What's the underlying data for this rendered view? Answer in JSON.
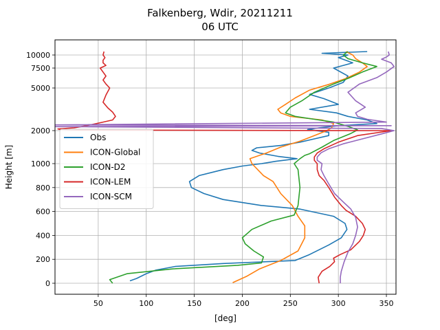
{
  "chart_data": {
    "type": "line",
    "title": "Falkenberg, Wdir, 20211211",
    "subtitle": "06 UTC",
    "xlabel": "[deg]",
    "ylabel": "Height [m]",
    "xlim": [
      5,
      360
    ],
    "x_ticks": [
      50,
      100,
      150,
      200,
      250,
      300,
      350
    ],
    "y_ticks": [
      {
        "label": "0",
        "value": 0
      },
      {
        "label": "200",
        "value": 200
      },
      {
        "label": "400",
        "value": 400
      },
      {
        "label": "600",
        "value": 600
      },
      {
        "label": "800",
        "value": 800
      },
      {
        "label": "1000",
        "value": 1000
      },
      {
        "label": "2000",
        "value": 2000
      },
      {
        "label": "5000",
        "value": 5000
      },
      {
        "label": "7500",
        "value": 7500
      },
      {
        "label": "10000",
        "value": 10000
      }
    ],
    "y_axis_note": "piecewise scale: linear 0-1000 m, compressed above 1000 m",
    "grid": true,
    "legend_position": "center-left",
    "series": [
      {
        "name": "Obs",
        "color": "#1f77b4",
        "points": [
          [
            83,
            20
          ],
          [
            90,
            40
          ],
          [
            100,
            80
          ],
          [
            110,
            110
          ],
          [
            130,
            140
          ],
          [
            180,
            165
          ],
          [
            255,
            190
          ],
          [
            270,
            240
          ],
          [
            290,
            320
          ],
          [
            303,
            380
          ],
          [
            309,
            450
          ],
          [
            307,
            500
          ],
          [
            295,
            560
          ],
          [
            260,
            620
          ],
          [
            220,
            650
          ],
          [
            180,
            700
          ],
          [
            160,
            750
          ],
          [
            147,
            800
          ],
          [
            145,
            850
          ],
          [
            155,
            900
          ],
          [
            180,
            950
          ],
          [
            200,
            980
          ],
          [
            220,
            1000
          ],
          [
            235,
            1070
          ],
          [
            257,
            1150
          ],
          [
            237,
            1220
          ],
          [
            218,
            1320
          ],
          [
            210,
            1400
          ],
          [
            215,
            1480
          ],
          [
            240,
            1550
          ],
          [
            260,
            1650
          ],
          [
            275,
            1750
          ],
          [
            290,
            1850
          ],
          [
            290,
            1950
          ],
          [
            268,
            2080
          ],
          [
            280,
            2200
          ],
          [
            300,
            2350
          ],
          [
            340,
            2500
          ],
          [
            330,
            2750
          ],
          [
            310,
            3000
          ],
          [
            298,
            3250
          ],
          [
            270,
            3500
          ],
          [
            300,
            3850
          ],
          [
            285,
            4250
          ],
          [
            270,
            4550
          ],
          [
            290,
            5000
          ],
          [
            305,
            5700
          ],
          [
            310,
            6500
          ],
          [
            295,
            7500
          ],
          [
            315,
            8500
          ],
          [
            300,
            9500
          ],
          [
            310,
            10000
          ],
          [
            283,
            10200
          ],
          [
            330,
            10400
          ]
        ]
      },
      {
        "name": "ICON-Global",
        "color": "#ff7f0e",
        "points": [
          [
            190,
            5
          ],
          [
            205,
            60
          ],
          [
            218,
            120
          ],
          [
            240,
            190
          ],
          [
            258,
            270
          ],
          [
            265,
            380
          ],
          [
            265,
            480
          ],
          [
            258,
            560
          ],
          [
            252,
            650
          ],
          [
            240,
            750
          ],
          [
            232,
            850
          ],
          [
            222,
            900
          ],
          [
            210,
            1000
          ],
          [
            208,
            1150
          ],
          [
            225,
            1320
          ],
          [
            240,
            1500
          ],
          [
            260,
            1680
          ],
          [
            275,
            1850
          ],
          [
            288,
            2000
          ],
          [
            293,
            2200
          ],
          [
            295,
            2500
          ],
          [
            283,
            2750
          ],
          [
            250,
            3000
          ],
          [
            240,
            3250
          ],
          [
            237,
            3500
          ],
          [
            245,
            3850
          ],
          [
            255,
            4300
          ],
          [
            270,
            4850
          ],
          [
            290,
            5450
          ],
          [
            308,
            6200
          ],
          [
            322,
            7000
          ],
          [
            330,
            7800
          ],
          [
            325,
            8500
          ],
          [
            318,
            9300
          ],
          [
            315,
            10000
          ],
          [
            308,
            10400
          ]
        ]
      },
      {
        "name": "ICON-D2",
        "color": "#2ca02c",
        "points": [
          [
            65,
            0
          ],
          [
            62,
            30
          ],
          [
            80,
            80
          ],
          [
            128,
            120
          ],
          [
            195,
            150
          ],
          [
            220,
            170
          ],
          [
            222,
            220
          ],
          [
            212,
            270
          ],
          [
            203,
            330
          ],
          [
            200,
            380
          ],
          [
            210,
            450
          ],
          [
            230,
            520
          ],
          [
            254,
            570
          ],
          [
            258,
            650
          ],
          [
            260,
            800
          ],
          [
            258,
            950
          ],
          [
            254,
            1000
          ],
          [
            260,
            1150
          ],
          [
            265,
            1250
          ],
          [
            270,
            1300
          ],
          [
            283,
            1500
          ],
          [
            295,
            1700
          ],
          [
            312,
            1900
          ],
          [
            320,
            2050
          ],
          [
            310,
            2300
          ],
          [
            295,
            2600
          ],
          [
            275,
            2800
          ],
          [
            255,
            3000
          ],
          [
            245,
            3250
          ],
          [
            250,
            3650
          ],
          [
            262,
            4100
          ],
          [
            275,
            4700
          ],
          [
            295,
            5500
          ],
          [
            312,
            6300
          ],
          [
            325,
            7000
          ],
          [
            340,
            7800
          ],
          [
            325,
            8500
          ],
          [
            310,
            9300
          ],
          [
            305,
            10000
          ],
          [
            310,
            10400
          ]
        ]
      },
      {
        "name": "ICON-LEM",
        "color": "#d62728",
        "points": [
          [
            280,
            0
          ],
          [
            279,
            50
          ],
          [
            283,
            100
          ],
          [
            291,
            140
          ],
          [
            296,
            180
          ],
          [
            295,
            210
          ],
          [
            302,
            240
          ],
          [
            313,
            280
          ],
          [
            322,
            350
          ],
          [
            326,
            400
          ],
          [
            328,
            450
          ],
          [
            325,
            500
          ],
          [
            318,
            560
          ],
          [
            308,
            610
          ],
          [
            303,
            650
          ],
          [
            296,
            720
          ],
          [
            290,
            800
          ],
          [
            285,
            860
          ],
          [
            280,
            900
          ],
          [
            278,
            950
          ],
          [
            278,
            1000
          ],
          [
            275,
            1100
          ],
          [
            275,
            1200
          ],
          [
            278,
            1320
          ],
          [
            285,
            1450
          ],
          [
            300,
            1650
          ],
          [
            320,
            1850
          ],
          [
            355,
            2000
          ],
          [
            30,
            2040
          ],
          [
            10,
            2080
          ],
          [
            8,
            2120
          ],
          [
            25,
            2200
          ],
          [
            38,
            2350
          ],
          [
            45,
            2450
          ],
          [
            55,
            2600
          ],
          [
            65,
            2750
          ],
          [
            68,
            3000
          ],
          [
            65,
            3300
          ],
          [
            60,
            3600
          ],
          [
            55,
            4000
          ],
          [
            58,
            4500
          ],
          [
            62,
            5000
          ],
          [
            58,
            5500
          ],
          [
            55,
            6000
          ],
          [
            58,
            6500
          ],
          [
            55,
            7000
          ],
          [
            52,
            7500
          ],
          [
            58,
            8000
          ],
          [
            55,
            8500
          ],
          [
            55,
            9000
          ],
          [
            57,
            9500
          ],
          [
            55,
            10000
          ],
          [
            56,
            10400
          ]
        ]
      },
      {
        "name": "ICON-SCM",
        "color": "#9467bd",
        "points": [
          [
            302,
            0
          ],
          [
            302,
            50
          ],
          [
            303,
            100
          ],
          [
            306,
            180
          ],
          [
            310,
            260
          ],
          [
            315,
            330
          ],
          [
            318,
            400
          ],
          [
            320,
            470
          ],
          [
            318,
            550
          ],
          [
            313,
            620
          ],
          [
            305,
            680
          ],
          [
            296,
            750
          ],
          [
            290,
            830
          ],
          [
            285,
            900
          ],
          [
            282,
            950
          ],
          [
            283,
            1000
          ],
          [
            278,
            1100
          ],
          [
            278,
            1200
          ],
          [
            282,
            1330
          ],
          [
            290,
            1450
          ],
          [
            305,
            1600
          ],
          [
            325,
            1750
          ],
          [
            345,
            1900
          ],
          [
            358,
            2000
          ],
          [
            345,
            2150
          ],
          [
            5,
            2280
          ],
          [
            355,
            2350
          ],
          [
            5,
            2400
          ],
          [
            350,
            2600
          ],
          [
            330,
            2800
          ],
          [
            320,
            3000
          ],
          [
            318,
            3250
          ],
          [
            328,
            3650
          ],
          [
            318,
            4100
          ],
          [
            310,
            4700
          ],
          [
            322,
            5500
          ],
          [
            340,
            6300
          ],
          [
            350,
            7000
          ],
          [
            358,
            7800
          ],
          [
            355,
            8500
          ],
          [
            345,
            9200
          ],
          [
            350,
            9600
          ],
          [
            353,
            10000
          ],
          [
            352,
            10400
          ]
        ]
      }
    ]
  }
}
